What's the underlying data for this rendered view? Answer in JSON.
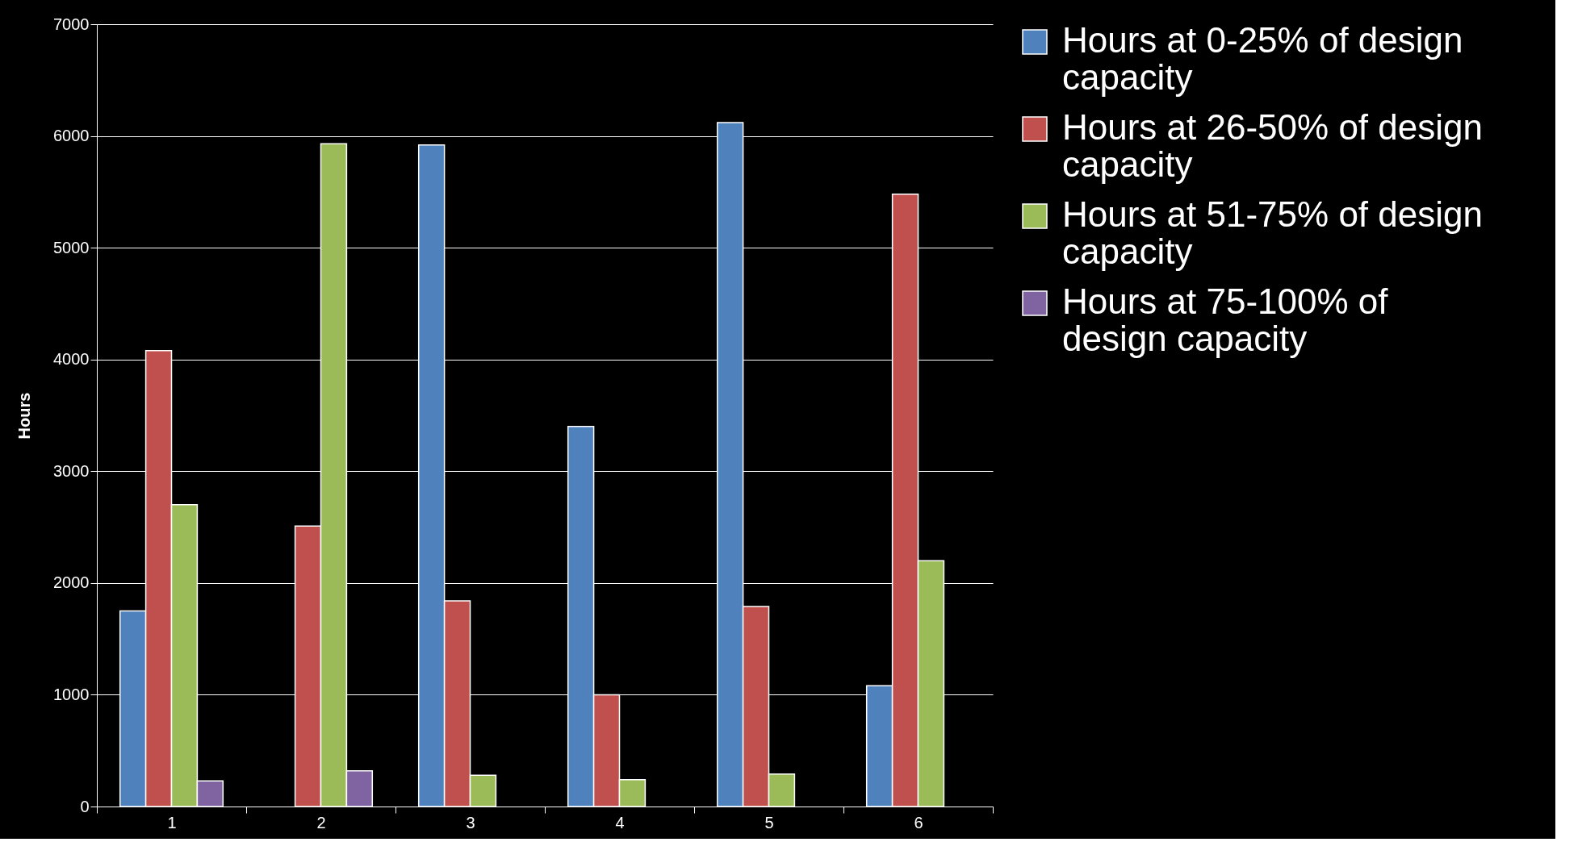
{
  "chart_data": {
    "type": "bar",
    "ylabel": "Hours",
    "categories": [
      "1",
      "2",
      "3",
      "4",
      "5",
      "6"
    ],
    "series": [
      {
        "name": "Hours at 0-25% of design capacity",
        "color": "#4f81bd",
        "values": [
          1750,
          null,
          5920,
          3400,
          6120,
          1080
        ]
      },
      {
        "name": "Hours at 26-50% of design capacity",
        "color": "#c0504d",
        "values": [
          4080,
          2510,
          1840,
          1000,
          1790,
          5480
        ]
      },
      {
        "name": "Hours at 51-75% of design capacity",
        "color": "#9bbb59",
        "values": [
          2700,
          5930,
          280,
          240,
          290,
          2200
        ]
      },
      {
        "name": "Hours at 75-100% of design capacity",
        "color": "#8064a2",
        "values": [
          230,
          320,
          null,
          null,
          null,
          null
        ]
      }
    ],
    "ylim": [
      0,
      7000
    ],
    "yticks": [
      0,
      1000,
      2000,
      3000,
      4000,
      5000,
      6000,
      7000
    ],
    "grid": "y",
    "legend": "right"
  }
}
